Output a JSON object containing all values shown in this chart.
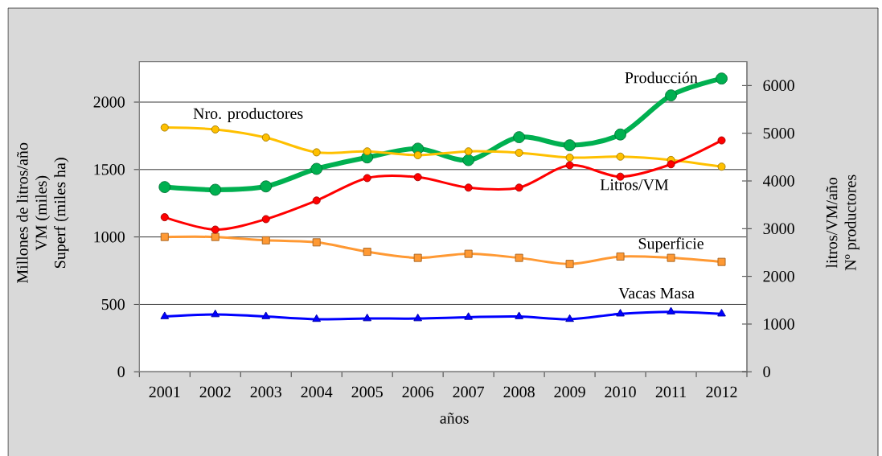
{
  "chart_data": {
    "type": "line",
    "xlabel": "años",
    "ylabel": "Millones de litros/año\nVM (miles)\nSuperf (miles ha)",
    "y2label": "litros/VM/año\nNº productores",
    "categories": [
      "2001",
      "2002",
      "2003",
      "2004",
      "2005",
      "2006",
      "2007",
      "2008",
      "2009",
      "2010",
      "2011",
      "2012"
    ],
    "series": [
      {
        "name": "Producción",
        "color": "#00b050",
        "marker": "circle",
        "values": [
          1370,
          1350,
          1375,
          1505,
          1590,
          1655,
          1570,
          1740,
          1680,
          1760,
          2050,
          2175
        ]
      },
      {
        "name": "Nro. productores",
        "color": "#ffc000",
        "marker": "circle",
        "axis": "y2",
        "values": [
          5120,
          5080,
          4910,
          4600,
          4620,
          4540,
          4620,
          4590,
          4490,
          4510,
          4440,
          4300
        ]
      },
      {
        "name": "Litros/VM",
        "color": "#ff0000",
        "marker": "circle",
        "axis": "y2",
        "values": [
          3240,
          2980,
          3200,
          3590,
          4060,
          4080,
          3860,
          3860,
          4330,
          4090,
          4350,
          4850
        ]
      },
      {
        "name": "Superficie",
        "color": "#ff9933",
        "marker": "square",
        "values": [
          1000,
          1000,
          975,
          960,
          890,
          845,
          875,
          845,
          800,
          855,
          845,
          815
        ]
      },
      {
        "name": "Vacas Masa",
        "color": "#0000ff",
        "marker": "triangle",
        "values": [
          410,
          425,
          410,
          390,
          395,
          395,
          405,
          410,
          390,
          430,
          445,
          430
        ]
      }
    ],
    "ylim": [
      0,
      2300
    ],
    "yticks": [
      0,
      500,
      1000,
      1500,
      2000
    ],
    "y2lim": [
      0,
      6500
    ],
    "y2ticks": [
      0,
      1000,
      2000,
      3000,
      4000,
      5000,
      6000
    ],
    "grid": "y"
  }
}
